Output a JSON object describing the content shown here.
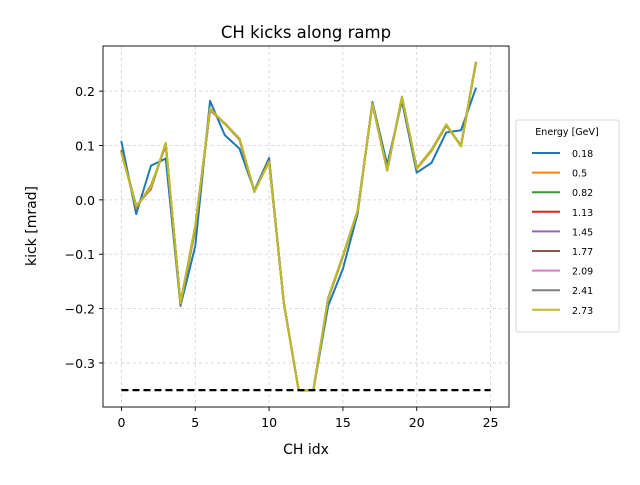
{
  "chart_data": {
    "type": "line",
    "title": "CH kicks along ramp",
    "xlabel": "CH idx",
    "ylabel": "kick [mrad]",
    "xlim": [
      -1.25,
      26.25
    ],
    "ylim": [
      -0.381,
      0.283
    ],
    "xticks": [
      0,
      5,
      10,
      15,
      20,
      25
    ],
    "yticks": [
      -0.3,
      -0.2,
      -0.1,
      0.0,
      0.1,
      0.2
    ],
    "ytick_labels": [
      "−0.3",
      "−0.2",
      "−0.1",
      "0.0",
      "0.1",
      "0.2"
    ],
    "grid": true,
    "legend": {
      "title": "Energy [GeV]",
      "placement": "right outside"
    },
    "x": [
      0,
      1,
      2,
      3,
      4,
      5,
      6,
      7,
      8,
      9,
      10,
      11,
      12,
      13,
      14,
      15,
      16,
      17,
      18,
      19,
      20,
      21,
      22,
      23,
      24
    ],
    "series": [
      {
        "name": "0.18",
        "color": "#1f77b4",
        "values": [
          0.107,
          -0.026,
          0.063,
          0.076,
          -0.195,
          -0.085,
          0.182,
          0.119,
          0.094,
          0.017,
          0.077,
          -0.19,
          -0.35,
          -0.35,
          -0.195,
          -0.127,
          -0.025,
          0.18,
          0.065,
          0.182,
          0.05,
          0.068,
          0.124,
          0.128,
          0.205
        ]
      },
      {
        "name": "0.5",
        "color": "#ff7f0e",
        "values": [
          0.09,
          -0.015,
          0.027,
          0.1,
          -0.192,
          -0.055,
          0.168,
          0.14,
          0.113,
          0.015,
          0.072,
          -0.19,
          -0.35,
          -0.35,
          -0.183,
          -0.105,
          -0.02,
          0.177,
          0.055,
          0.188,
          0.057,
          0.09,
          0.137,
          0.1,
          0.25
        ]
      },
      {
        "name": "0.82",
        "color": "#2ca02c",
        "values": [
          0.09,
          -0.013,
          0.024,
          0.102,
          -0.191,
          -0.052,
          0.167,
          0.14,
          0.112,
          0.015,
          0.072,
          -0.19,
          -0.35,
          -0.35,
          -0.182,
          -0.104,
          -0.02,
          0.177,
          0.055,
          0.188,
          0.058,
          0.091,
          0.137,
          0.1,
          0.251
        ]
      },
      {
        "name": "1.13",
        "color": "#d62728",
        "values": [
          0.089,
          -0.011,
          0.02,
          0.104,
          -0.191,
          -0.05,
          0.165,
          0.141,
          0.112,
          0.015,
          0.071,
          -0.19,
          -0.35,
          -0.35,
          -0.181,
          -0.103,
          -0.02,
          0.177,
          0.054,
          0.189,
          0.058,
          0.092,
          0.138,
          0.099,
          0.252
        ]
      },
      {
        "name": "1.45",
        "color": "#9467bd",
        "values": [
          0.088,
          -0.012,
          0.022,
          0.103,
          -0.19,
          -0.049,
          0.166,
          0.14,
          0.111,
          0.015,
          0.071,
          -0.19,
          -0.35,
          -0.35,
          -0.181,
          -0.103,
          -0.02,
          0.177,
          0.054,
          0.189,
          0.058,
          0.092,
          0.138,
          0.099,
          0.252
        ]
      },
      {
        "name": "1.77",
        "color": "#8c564b",
        "values": [
          0.087,
          -0.012,
          0.022,
          0.103,
          -0.19,
          -0.049,
          0.166,
          0.14,
          0.111,
          0.015,
          0.071,
          -0.19,
          -0.35,
          -0.35,
          -0.181,
          -0.103,
          -0.02,
          0.177,
          0.054,
          0.189,
          0.058,
          0.092,
          0.138,
          0.099,
          0.252
        ]
      },
      {
        "name": "2.09",
        "color": "#e377c2",
        "values": [
          0.087,
          -0.012,
          0.022,
          0.103,
          -0.19,
          -0.049,
          0.166,
          0.14,
          0.111,
          0.015,
          0.071,
          -0.19,
          -0.35,
          -0.35,
          -0.181,
          -0.103,
          -0.02,
          0.177,
          0.054,
          0.189,
          0.058,
          0.092,
          0.138,
          0.099,
          0.252
        ]
      },
      {
        "name": "2.41",
        "color": "#7f7f7f",
        "values": [
          0.087,
          -0.012,
          0.022,
          0.103,
          -0.19,
          -0.049,
          0.167,
          0.14,
          0.112,
          0.015,
          0.071,
          -0.19,
          -0.35,
          -0.35,
          -0.181,
          -0.103,
          -0.02,
          0.177,
          0.054,
          0.189,
          0.058,
          0.092,
          0.138,
          0.099,
          0.252
        ]
      },
      {
        "name": "2.73",
        "color": "#bcbd22",
        "values": [
          0.086,
          -0.012,
          0.023,
          0.105,
          -0.19,
          -0.048,
          0.168,
          0.14,
          0.113,
          0.015,
          0.07,
          -0.19,
          -0.35,
          -0.35,
          -0.181,
          -0.103,
          -0.02,
          0.177,
          0.054,
          0.19,
          0.058,
          0.092,
          0.139,
          0.098,
          0.253
        ]
      }
    ],
    "reference_line": {
      "x": [
        0,
        25
      ],
      "y": -0.35,
      "color": "#000000",
      "style": "dashed"
    }
  }
}
